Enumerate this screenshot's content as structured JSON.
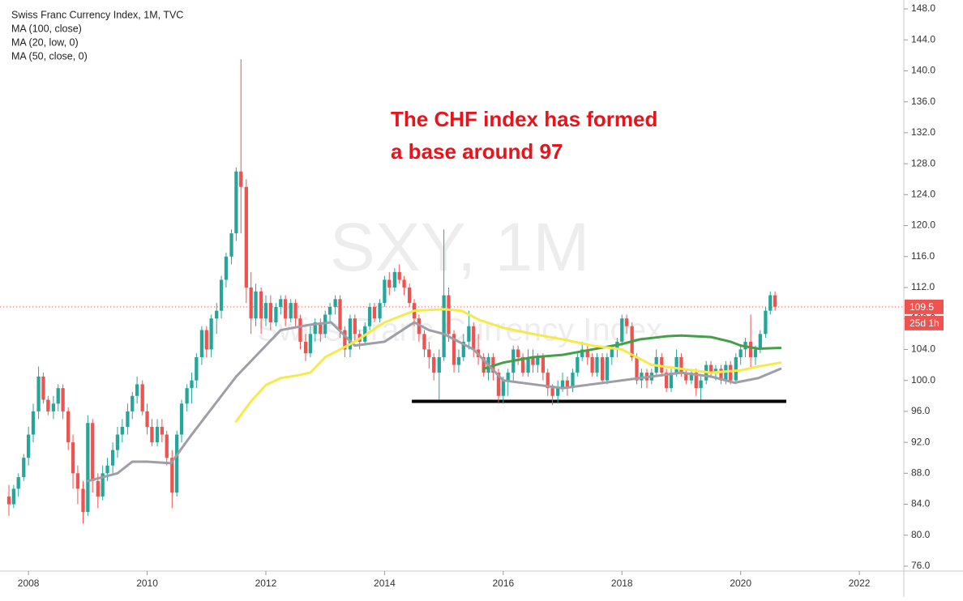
{
  "chart_data": {
    "type": "candlestick",
    "annotation": [
      "The CHF index has formed",
      "a base around 97"
    ],
    "annotation_color": "#e8131b",
    "watermark": [
      "SXY, 1M",
      "Swiss Franc Currency Index"
    ],
    "xlim": [
      2007.52,
      2022.75
    ],
    "xticks": [
      2008,
      2010,
      2012,
      2014,
      2016,
      2018,
      2020,
      2022
    ],
    "ylim": [
      75.37,
      149.15
    ],
    "yticks": [
      {
        "value": 76,
        "label": "76.0"
      },
      {
        "value": 80,
        "label": "80.0"
      },
      {
        "value": 84,
        "label": "84.0"
      },
      {
        "value": 88,
        "label": "88.0"
      },
      {
        "value": 92,
        "label": "92.0"
      },
      {
        "value": 96,
        "label": "96.0"
      },
      {
        "value": 100,
        "label": "100.0"
      },
      {
        "value": 104,
        "label": "104.0"
      },
      {
        "value": 108,
        "label": "108.0"
      },
      {
        "value": 112,
        "label": "112.0"
      },
      {
        "value": 116,
        "label": "116.0"
      },
      {
        "value": 120,
        "label": "120.0"
      },
      {
        "value": 124,
        "label": "124.0"
      },
      {
        "value": 128,
        "label": "128.0"
      },
      {
        "value": 132,
        "label": "132.0"
      },
      {
        "value": 136,
        "label": "136.0"
      },
      {
        "value": 140,
        "label": "140.0"
      },
      {
        "value": 144,
        "label": "144.0"
      },
      {
        "value": 148,
        "label": "148.0"
      }
    ],
    "last_price": {
      "value": 109.5,
      "countdown": "25d 1h",
      "color": "#ef5350"
    },
    "support_line": {
      "value": 97.3,
      "x": [
        2014.46,
        2020.77
      ],
      "color": "#000000"
    },
    "series": [
      {
        "name": "Swiss Franc Currency Index, 1M, TVC",
        "up_color": "#26a69a",
        "down_color": "#ef5350",
        "x": [
          2007.67,
          2007.75,
          2007.83,
          2007.92,
          2008.0,
          2008.08,
          2008.17,
          2008.25,
          2008.33,
          2008.42,
          2008.5,
          2008.58,
          2008.67,
          2008.75,
          2008.83,
          2008.92,
          2009.0,
          2009.08,
          2009.17,
          2009.25,
          2009.33,
          2009.42,
          2009.5,
          2009.58,
          2009.67,
          2009.75,
          2009.83,
          2009.92,
          2010.0,
          2010.08,
          2010.17,
          2010.25,
          2010.33,
          2010.42,
          2010.5,
          2010.58,
          2010.67,
          2010.75,
          2010.83,
          2010.92,
          2011.0,
          2011.08,
          2011.17,
          2011.25,
          2011.33,
          2011.42,
          2011.5,
          2011.58,
          2011.67,
          2011.75,
          2011.83,
          2011.92,
          2012.0,
          2012.08,
          2012.17,
          2012.25,
          2012.33,
          2012.42,
          2012.5,
          2012.58,
          2012.67,
          2012.75,
          2012.83,
          2012.92,
          2013.0,
          2013.08,
          2013.17,
          2013.25,
          2013.33,
          2013.42,
          2013.5,
          2013.58,
          2013.67,
          2013.75,
          2013.83,
          2013.92,
          2014.0,
          2014.08,
          2014.17,
          2014.25,
          2014.33,
          2014.42,
          2014.5,
          2014.58,
          2014.67,
          2014.75,
          2014.83,
          2014.92,
          2015.0,
          2015.08,
          2015.17,
          2015.25,
          2015.33,
          2015.42,
          2015.5,
          2015.58,
          2015.67,
          2015.75,
          2015.83,
          2015.92,
          2016.0,
          2016.08,
          2016.17,
          2016.25,
          2016.33,
          2016.42,
          2016.5,
          2016.58,
          2016.67,
          2016.75,
          2016.83,
          2016.92,
          2017.0,
          2017.08,
          2017.17,
          2017.25,
          2017.33,
          2017.42,
          2017.5,
          2017.58,
          2017.67,
          2017.75,
          2017.83,
          2017.92,
          2018.0,
          2018.08,
          2018.17,
          2018.25,
          2018.33,
          2018.42,
          2018.5,
          2018.58,
          2018.67,
          2018.75,
          2018.83,
          2018.92,
          2019.0,
          2019.08,
          2019.17,
          2019.25,
          2019.33,
          2019.42,
          2019.5,
          2019.58,
          2019.67,
          2019.75,
          2019.83,
          2019.92,
          2020.0,
          2020.08,
          2020.17,
          2020.25,
          2020.33,
          2020.42,
          2020.5,
          2020.58
        ],
        "open": [
          85,
          84,
          86,
          87.5,
          90,
          93,
          96,
          100.5,
          97.5,
          96,
          97,
          99,
          96,
          92,
          88,
          86,
          83,
          94.5,
          87,
          85,
          88,
          89,
          91,
          93,
          94,
          96,
          98,
          99.5,
          96,
          94,
          92,
          94,
          93,
          90,
          85.5,
          93,
          97,
          99,
          100,
          103,
          106.5,
          104,
          108,
          109,
          113,
          116,
          119,
          127,
          125,
          112,
          108,
          111.5,
          108,
          110,
          107.5,
          109.5,
          110.5,
          108,
          110,
          108,
          105,
          103.5,
          106,
          107.5,
          106,
          108.5,
          109.5,
          110.5,
          106.5,
          104,
          108,
          106,
          105,
          107,
          109.5,
          108,
          110,
          113,
          112,
          114,
          113,
          112,
          110,
          108,
          106,
          104,
          103,
          101,
          103,
          111,
          106,
          102,
          103,
          105,
          107,
          104,
          103,
          101,
          103,
          101,
          98,
          100,
          101,
          104,
          103,
          101,
          103,
          102,
          103,
          101,
          99,
          98,
          99,
          100,
          99,
          101,
          103,
          104,
          103,
          101,
          103,
          100,
          103,
          104,
          105,
          108,
          107,
          103,
          100,
          101,
          100,
          101,
          103,
          101,
          99,
          101,
          103,
          101,
          100,
          101,
          99,
          100,
          102,
          101,
          101.5,
          100,
          102,
          100,
          103,
          104,
          105,
          103,
          104,
          106,
          109,
          111
        ],
        "high": [
          86.5,
          86.5,
          88,
          90.5,
          94,
          97,
          101.8,
          101,
          98,
          98,
          99.5,
          99.5,
          96.5,
          93,
          89,
          87,
          95.5,
          95,
          88,
          89,
          90,
          92,
          94,
          95,
          97,
          98.5,
          100.5,
          100,
          97,
          95,
          95,
          95,
          93.5,
          91,
          93.5,
          97.5,
          99.5,
          101,
          103.5,
          107,
          107,
          108.5,
          110,
          113.5,
          116.5,
          119.5,
          127.5,
          141.5,
          126,
          114,
          112.5,
          112,
          111,
          111,
          110,
          111,
          111,
          110.5,
          110.5,
          108.5,
          106,
          107,
          108,
          108,
          109,
          110,
          111,
          111,
          107,
          108.5,
          108.5,
          106.5,
          107.5,
          110,
          110,
          110.5,
          113.5,
          114,
          114.5,
          115,
          113.5,
          112.5,
          110.5,
          108.5,
          106.5,
          105,
          103.5,
          104,
          119.5,
          112,
          106.5,
          104,
          106,
          109,
          107.5,
          106,
          103.5,
          103.5,
          103.5,
          101.5,
          100.5,
          101.5,
          104.5,
          104.5,
          103.5,
          104,
          104,
          103.5,
          103.5,
          101.5,
          99.5,
          100,
          101,
          100.5,
          101.5,
          103.5,
          105,
          104.5,
          103.5,
          103.5,
          103.5,
          103.5,
          104.5,
          105.5,
          108.5,
          108.5,
          107.5,
          103.5,
          101.5,
          101.5,
          101.5,
          104,
          103.5,
          101.5,
          101.5,
          104,
          103.5,
          101.5,
          101.5,
          101.5,
          100.5,
          102.5,
          102.5,
          102,
          102,
          102.5,
          102.5,
          103.5,
          104.5,
          105.5,
          108.5,
          104.5,
          106.5,
          109.5,
          111.5,
          111.5
        ],
        "low": [
          82.5,
          83.5,
          85,
          87,
          89,
          92,
          95,
          97,
          95.5,
          95,
          96,
          95,
          91,
          86,
          84,
          81.5,
          82.5,
          85.5,
          83.5,
          84.5,
          87,
          88,
          90,
          92,
          93,
          95,
          97,
          95.5,
          93,
          91.5,
          91.5,
          92,
          89,
          83.5,
          85,
          92,
          96,
          97,
          99,
          102,
          103,
          103,
          106,
          108,
          112,
          115,
          118,
          119,
          110,
          106,
          107,
          106,
          107,
          106.5,
          107,
          108.5,
          107,
          107.5,
          107,
          104,
          102.5,
          103,
          105,
          105,
          105.5,
          107.5,
          108.5,
          105.5,
          103,
          103,
          105,
          104,
          104.5,
          106.5,
          107.5,
          107.5,
          109.5,
          111,
          111.5,
          112.5,
          111,
          109.5,
          107,
          105,
          103,
          101.5,
          100,
          97.5,
          102.5,
          105,
          101,
          101,
          102.5,
          104,
          103,
          102,
          100.5,
          100,
          100,
          97,
          97,
          98,
          100,
          102,
          100.5,
          100.5,
          101,
          101,
          100,
          98,
          96.8,
          97,
          98.5,
          98,
          98.5,
          100.5,
          102.5,
          102,
          100.5,
          100.5,
          99.5,
          99.5,
          102,
          103,
          104.5,
          106,
          102.5,
          99.5,
          99,
          99,
          99.5,
          100.5,
          100.5,
          98.5,
          98.5,
          100.5,
          100.5,
          99.5,
          99.5,
          98,
          97.5,
          99.5,
          100.5,
          100,
          99.5,
          99.5,
          99.5,
          99.5,
          102,
          103,
          101.5,
          102,
          103.5,
          105.5,
          108.5,
          109
        ],
        "close": [
          84,
          86,
          87.5,
          90,
          93,
          96,
          100.5,
          97.5,
          96,
          97,
          99,
          96,
          92,
          88,
          86,
          83,
          94.5,
          87,
          85,
          88,
          89,
          91,
          93,
          94,
          96,
          98,
          99.5,
          96,
          94,
          92,
          94,
          93,
          90,
          85.5,
          93,
          97,
          99,
          100,
          103,
          106.5,
          104,
          108,
          109,
          113,
          116,
          119,
          127,
          125,
          112,
          108,
          111.5,
          108,
          110,
          107.5,
          109.5,
          110.5,
          108,
          110,
          108,
          105,
          103.5,
          106,
          107.5,
          106,
          108.5,
          109.5,
          110.5,
          106.5,
          104,
          108,
          106,
          105,
          107,
          109.5,
          108,
          110,
          113,
          112,
          114,
          113,
          112,
          110,
          108,
          106,
          104,
          103,
          101,
          103,
          111,
          106,
          102,
          103,
          105,
          107,
          104,
          103,
          101,
          103,
          101,
          98,
          100,
          101,
          104,
          103,
          101,
          103,
          102,
          103,
          101,
          99,
          98,
          99,
          100,
          99,
          101,
          103,
          104,
          103,
          101,
          103,
          100,
          103,
          104,
          105,
          108,
          107,
          103,
          100,
          101,
          100,
          101,
          103,
          101,
          99,
          101,
          103,
          101,
          100,
          101,
          99,
          100,
          102,
          101,
          101.5,
          100,
          102,
          100,
          103,
          104,
          105,
          103,
          104,
          106,
          109,
          111,
          109.5
        ]
      },
      {
        "name": "MA (100, close)",
        "color": "#43a047",
        "x": [
          2015.67,
          2016.0,
          2016.5,
          2017.0,
          2017.5,
          2018.0,
          2018.3,
          2018.75,
          2019.0,
          2019.5,
          2019.83,
          2020.0,
          2020.3,
          2020.67
        ],
        "values": [
          101.5,
          102.3,
          103,
          103.3,
          104,
          104.7,
          105.3,
          105.7,
          105.8,
          105.6,
          105,
          104.5,
          104.1,
          104.2
        ]
      },
      {
        "name": "MA (20, low, 0)",
        "color": "#9e9ea6",
        "x": [
          2009.0,
          2009.5,
          2009.75,
          2010.0,
          2010.4,
          2010.75,
          2011.0,
          2011.25,
          2011.5,
          2011.75,
          2012.0,
          2012.25,
          2012.75,
          2013.1,
          2013.5,
          2014.0,
          2014.5,
          2014.75,
          2015.0,
          2015.5,
          2016.0,
          2016.5,
          2017.0,
          2017.5,
          2018.0,
          2018.5,
          2019.0,
          2019.5,
          2019.9,
          2020.3,
          2020.67
        ],
        "values": [
          87,
          88,
          89.5,
          89.5,
          89.3,
          93,
          95.5,
          98,
          100.5,
          102.5,
          104.5,
          106.5,
          107.2,
          107.5,
          104.5,
          105,
          107.5,
          106.5,
          106,
          104,
          100,
          99.5,
          99,
          99.5,
          100,
          100.5,
          101,
          100.5,
          99.7,
          100.3,
          101.5
        ]
      },
      {
        "name": "MA (50, close, 0)",
        "color": "#f7e94a",
        "x": [
          2011.5,
          2011.75,
          2012.0,
          2012.25,
          2012.5,
          2012.75,
          2013.0,
          2013.5,
          2014.0,
          2014.5,
          2015.0,
          2015.3,
          2015.6,
          2016.0,
          2016.5,
          2017.0,
          2017.5,
          2018.0,
          2018.5,
          2019.0,
          2019.5,
          2020.0,
          2020.3,
          2020.67
        ],
        "values": [
          94.7,
          97.3,
          99.4,
          100.3,
          100.6,
          101,
          103,
          105,
          107.5,
          109,
          109.2,
          109,
          107.8,
          106.8,
          106,
          105.3,
          104.5,
          104,
          102,
          101.5,
          101,
          101.3,
          101.8,
          102.3
        ]
      }
    ]
  }
}
